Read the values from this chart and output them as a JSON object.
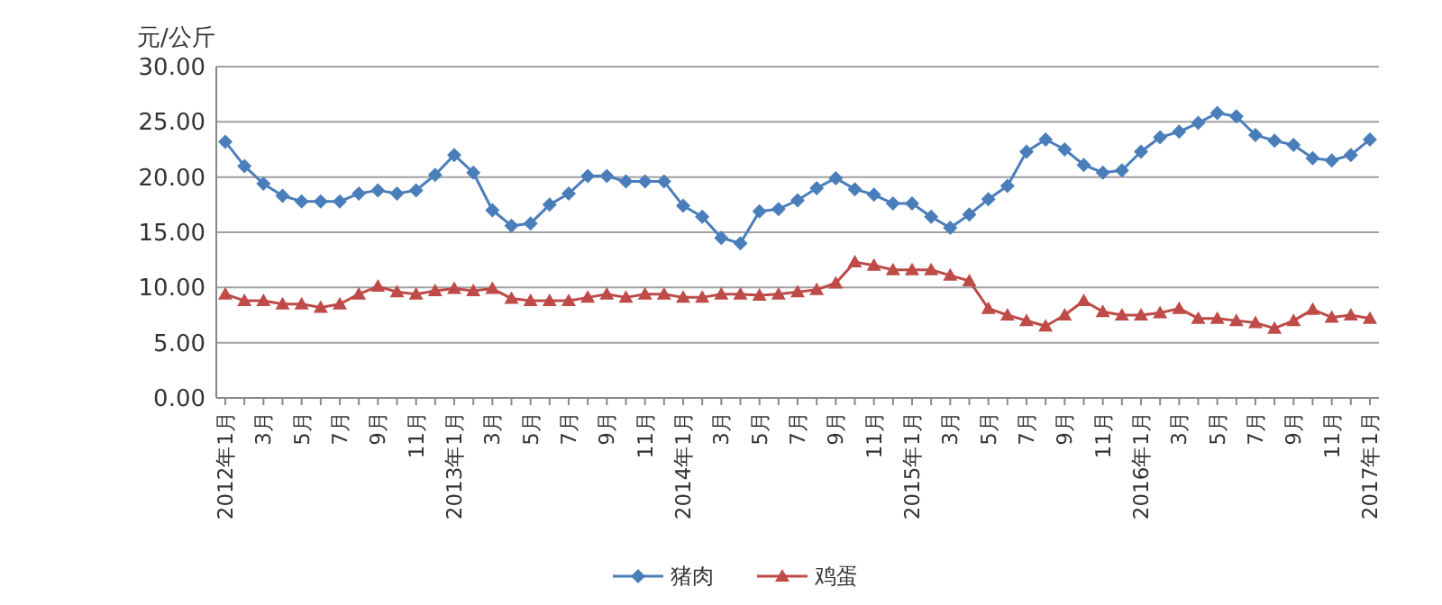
{
  "chart_data": {
    "type": "line",
    "ylabel": "元/公斤",
    "categories": [
      "2012年1月",
      null,
      "3月",
      null,
      "5月",
      null,
      "7月",
      null,
      "9月",
      null,
      "11月",
      null,
      "2013年1月",
      null,
      "3月",
      null,
      "5月",
      null,
      "7月",
      null,
      "9月",
      null,
      "11月",
      null,
      "2014年1月",
      null,
      "3月",
      null,
      "5月",
      null,
      "7月",
      null,
      "9月",
      null,
      "11月",
      null,
      "2015年1月",
      null,
      "3月",
      null,
      "5月",
      null,
      "7月",
      null,
      "9月",
      null,
      "11月",
      null,
      "2016年1月",
      null,
      "3月",
      null,
      "5月",
      null,
      "7月",
      null,
      "9月",
      null,
      "11月",
      null,
      "2017年1月"
    ],
    "series": [
      {
        "name": "猪肉",
        "color": "#4a7ebb",
        "marker": "diamond",
        "values": [
          23.2,
          21.0,
          19.4,
          18.3,
          17.8,
          17.8,
          17.8,
          18.5,
          18.8,
          18.5,
          18.8,
          20.2,
          22.0,
          20.4,
          17.0,
          15.6,
          15.8,
          17.5,
          18.5,
          20.1,
          20.1,
          19.6,
          19.6,
          19.6,
          17.4,
          16.4,
          14.5,
          14.0,
          16.9,
          17.1,
          17.9,
          19.0,
          19.9,
          18.9,
          18.4,
          17.6,
          17.6,
          16.4,
          15.4,
          16.6,
          18.0,
          19.2,
          22.3,
          23.4,
          22.5,
          21.1,
          20.4,
          20.6,
          22.3,
          23.6,
          24.1,
          24.9,
          25.8,
          25.5,
          23.8,
          23.3,
          22.9,
          21.7,
          21.5,
          22.0,
          23.4
        ]
      },
      {
        "name": "鸡蛋",
        "color": "#be4b48",
        "marker": "triangle",
        "values": [
          9.4,
          8.8,
          8.8,
          8.5,
          8.5,
          8.2,
          8.5,
          9.4,
          10.1,
          9.6,
          9.4,
          9.7,
          9.9,
          9.7,
          9.9,
          9.0,
          8.8,
          8.8,
          8.8,
          9.1,
          9.4,
          9.1,
          9.4,
          9.4,
          9.1,
          9.1,
          9.4,
          9.4,
          9.3,
          9.4,
          9.6,
          9.8,
          10.4,
          12.3,
          12.0,
          11.6,
          11.6,
          11.6,
          11.1,
          10.6,
          8.1,
          7.5,
          7.0,
          6.5,
          7.5,
          8.8,
          7.8,
          7.5,
          7.5,
          7.7,
          8.1,
          7.2,
          7.2,
          7.0,
          6.8,
          6.3,
          7.0,
          8.0,
          7.3,
          7.5,
          7.2
        ]
      }
    ],
    "ylim": [
      0,
      30
    ],
    "yticks": [
      {
        "value": 0,
        "label": "0.00"
      },
      {
        "value": 5,
        "label": "5.00"
      },
      {
        "value": 10,
        "label": "10.00"
      },
      {
        "value": 15,
        "label": "15.00"
      },
      {
        "value": 20,
        "label": "20.00"
      },
      {
        "value": 25,
        "label": "25.00"
      },
      {
        "value": 30,
        "label": "30.00"
      }
    ],
    "grid": "y",
    "legend": "bottom"
  }
}
